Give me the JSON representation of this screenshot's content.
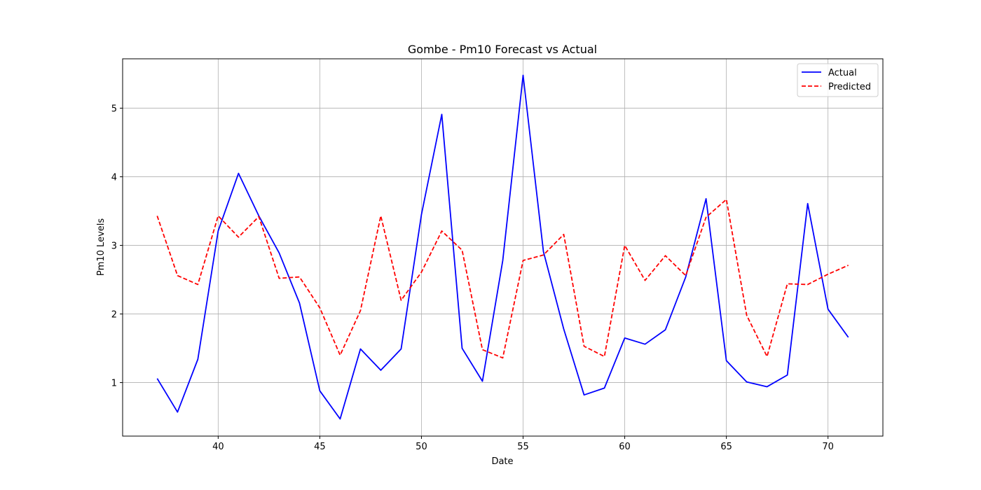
{
  "chart_data": {
    "type": "line",
    "title": "Gombe - Pm10 Forecast vs Actual",
    "xlabel": "Date",
    "ylabel": "Pm10 Levels",
    "xlim": [
      35.3,
      72.7
    ],
    "ylim": [
      0.22,
      5.72
    ],
    "x_ticks": [
      40,
      45,
      50,
      55,
      60,
      65,
      70
    ],
    "y_ticks": [
      1,
      2,
      3,
      4,
      5
    ],
    "grid": true,
    "legend_position": "top-right",
    "x": [
      37,
      38,
      39,
      40,
      41,
      42,
      43,
      44,
      45,
      46,
      47,
      48,
      49,
      50,
      51,
      52,
      53,
      54,
      55,
      56,
      57,
      58,
      59,
      60,
      61,
      62,
      63,
      64,
      65,
      66,
      67,
      68,
      69,
      70,
      71
    ],
    "series": [
      {
        "name": "Actual",
        "color": "#0000ff",
        "style": "solid",
        "values": [
          1.06,
          0.57,
          1.34,
          3.21,
          4.05,
          3.43,
          2.89,
          2.16,
          0.88,
          0.47,
          1.49,
          1.18,
          1.49,
          3.45,
          4.91,
          1.5,
          1.02,
          2.78,
          5.48,
          2.91,
          1.78,
          0.82,
          0.92,
          1.65,
          1.56,
          1.77,
          2.54,
          3.68,
          1.32,
          1.01,
          0.94,
          1.11,
          3.61,
          2.07,
          1.66
        ]
      },
      {
        "name": "Predicted",
        "color": "#ff0000",
        "style": "dashed",
        "values": [
          3.43,
          2.56,
          2.43,
          3.43,
          3.12,
          3.42,
          2.52,
          2.54,
          2.09,
          1.4,
          2.05,
          3.43,
          2.2,
          2.61,
          3.21,
          2.93,
          1.48,
          1.36,
          2.78,
          2.86,
          3.16,
          1.53,
          1.38,
          3.0,
          2.49,
          2.85,
          2.56,
          3.41,
          3.67,
          1.98,
          1.38,
          2.44,
          2.43,
          2.58,
          2.71
        ]
      }
    ]
  }
}
